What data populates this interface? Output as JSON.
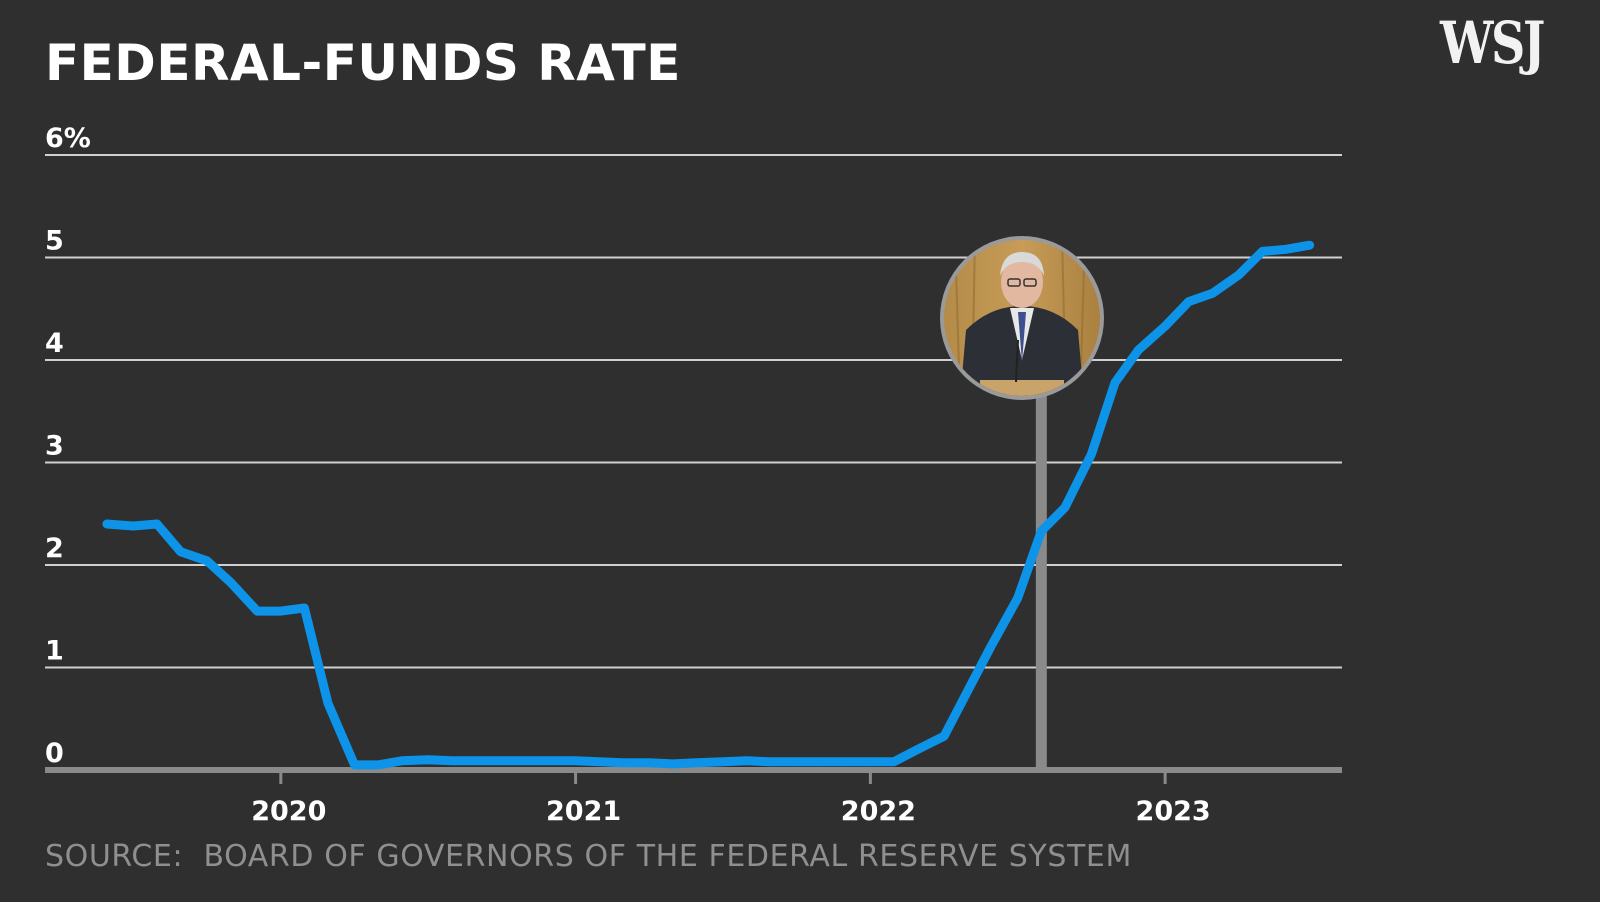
{
  "chart_data": {
    "type": "line",
    "title": "FEDERAL-FUNDS RATE",
    "source": "SOURCE:  BOARD OF GOVERNORS OF THE FEDERAL RESERVE SYSTEM",
    "ylim": [
      0,
      6
    ],
    "yticks": [
      {
        "value": 0,
        "label": "0"
      },
      {
        "value": 1,
        "label": "1"
      },
      {
        "value": 2,
        "label": "2"
      },
      {
        "value": 3,
        "label": "3"
      },
      {
        "value": 4,
        "label": "4"
      },
      {
        "value": 5,
        "label": "5"
      },
      {
        "value": 6,
        "label": "6%"
      }
    ],
    "xlim": [
      2019.2,
      2023.6
    ],
    "xticks": [
      {
        "value": 2020,
        "label": "2020"
      },
      {
        "value": 2021,
        "label": "2021"
      },
      {
        "value": 2022,
        "label": "2022"
      },
      {
        "value": 2023,
        "label": "2023"
      }
    ],
    "grid": true,
    "series": [
      {
        "name": "Federal-funds rate",
        "color": "#0d93e8",
        "x": [
          2019.41,
          2019.5,
          2019.58,
          2019.66,
          2019.75,
          2019.83,
          2019.92,
          2020.0,
          2020.08,
          2020.16,
          2020.25,
          2020.33,
          2020.41,
          2020.5,
          2020.58,
          2020.66,
          2020.75,
          2020.83,
          2020.91,
          2021.0,
          2021.08,
          2021.16,
          2021.25,
          2021.33,
          2021.41,
          2021.5,
          2021.58,
          2021.66,
          2021.75,
          2021.83,
          2021.91,
          2022.0,
          2022.08,
          2022.16,
          2022.25,
          2022.33,
          2022.41,
          2022.5,
          2022.58,
          2022.66,
          2022.75,
          2022.83,
          2022.91,
          2023.0,
          2023.08,
          2023.16,
          2023.25,
          2023.33,
          2023.41,
          2023.49
        ],
        "values": [
          2.4,
          2.38,
          2.4,
          2.13,
          2.04,
          1.83,
          1.55,
          1.55,
          1.58,
          0.65,
          0.05,
          0.05,
          0.09,
          0.1,
          0.09,
          0.09,
          0.09,
          0.09,
          0.09,
          0.09,
          0.08,
          0.07,
          0.07,
          0.06,
          0.07,
          0.08,
          0.09,
          0.08,
          0.08,
          0.08,
          0.08,
          0.08,
          0.08,
          0.2,
          0.33,
          0.77,
          1.21,
          1.68,
          2.33,
          2.56,
          3.08,
          3.78,
          4.1,
          4.33,
          4.57,
          4.65,
          4.83,
          5.06,
          5.08,
          5.12
        ]
      }
    ],
    "annotations": [
      {
        "type": "marker_line",
        "x": 2022.58,
        "label": "",
        "color": "#8a8a8a",
        "image": "presenter-portrait"
      }
    ]
  },
  "branding": {
    "logo": "WSJ"
  },
  "colors": {
    "background": "#2f2f2f",
    "grid": "#d0d0d0",
    "baseline": "#8a8a8a",
    "line": "#0d93e8",
    "marker": "#8a8a8a"
  }
}
